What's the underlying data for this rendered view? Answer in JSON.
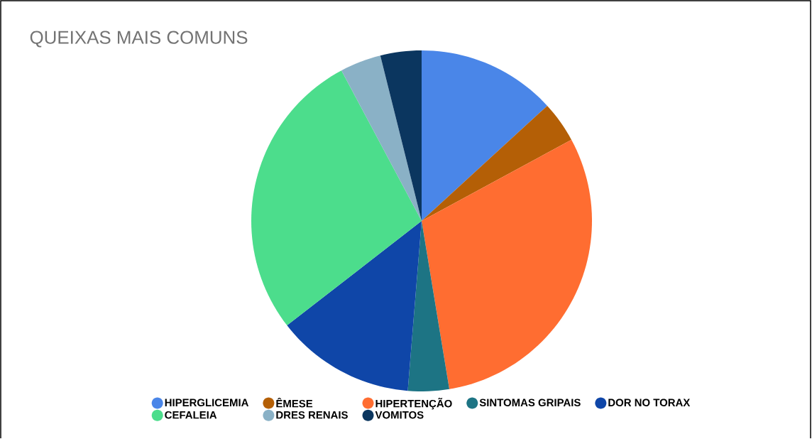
{
  "chart_data": {
    "type": "pie",
    "title": "QUEIXAS MAIS COMUNS",
    "categories": [
      "HIPERGLICEMIA",
      "ÊMESE",
      "HIPERTENÇÃO",
      "SINTOMAS GRIPAIS",
      "DOR NO TORAX",
      "CEFALEIA",
      "DRES RENAIS",
      "VOMITOS"
    ],
    "values": [
      13.2,
      3.9,
      30.3,
      3.9,
      13.2,
      27.7,
      3.9,
      3.9
    ],
    "colors": [
      "#4a86e8",
      "#b45f06",
      "#ff6d31",
      "#1d7484",
      "#0f46a8",
      "#4cdd8c",
      "#8ab1c6",
      "#0b365f"
    ],
    "legend": "bottom"
  }
}
